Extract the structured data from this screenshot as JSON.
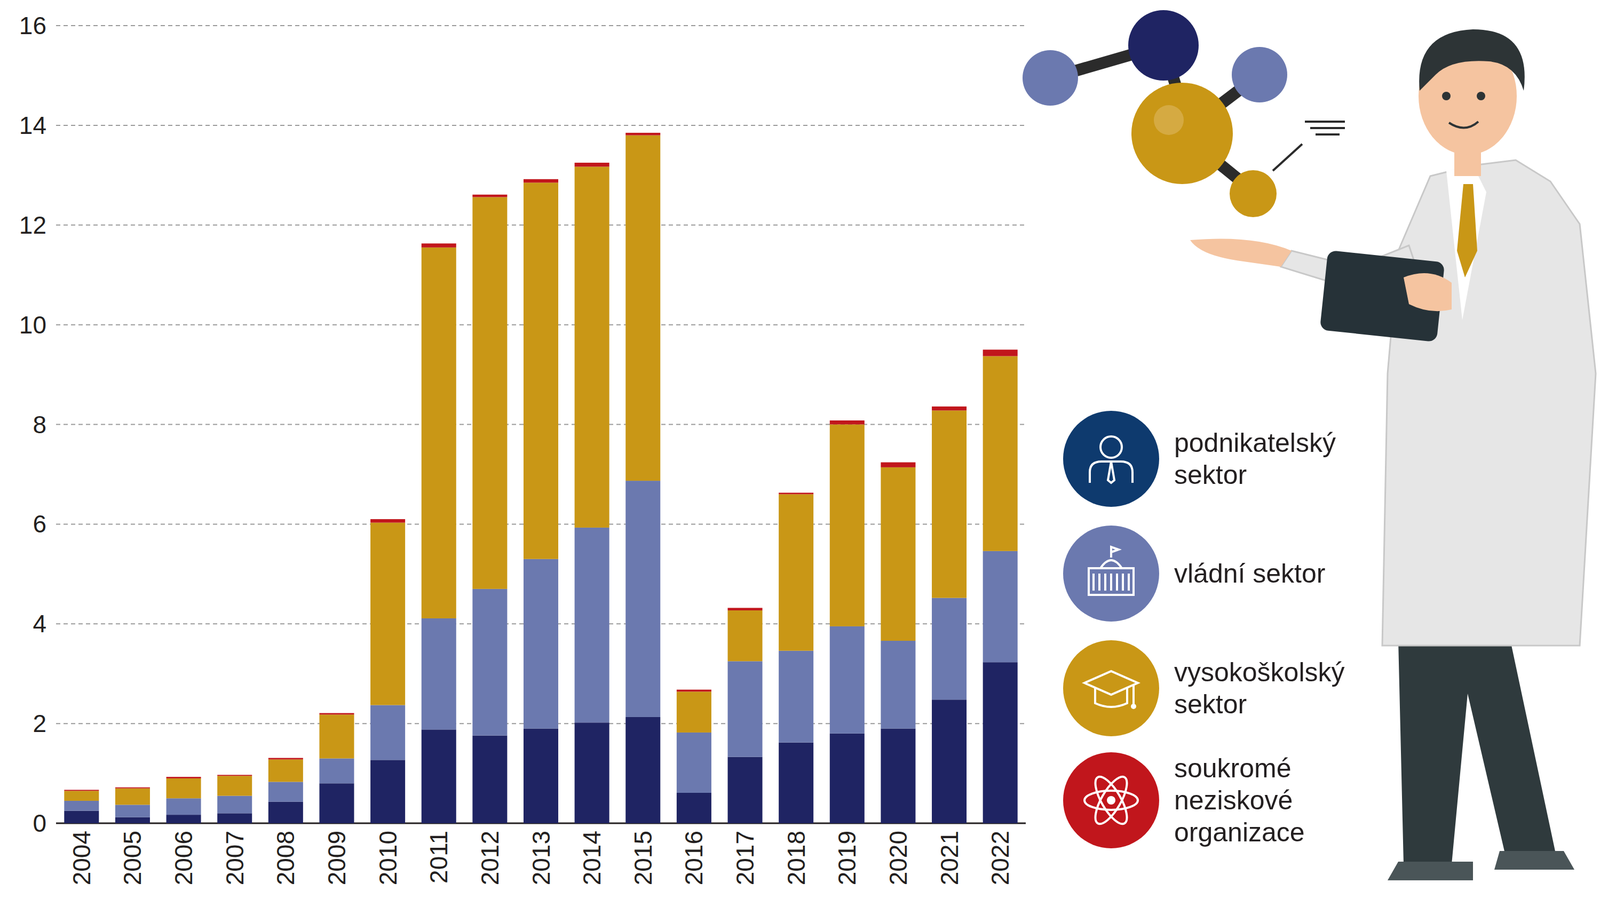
{
  "chart_data": {
    "type": "bar",
    "stacked": true,
    "grid": true,
    "legend": "right",
    "categories": [
      "2004",
      "2005",
      "2006",
      "2007",
      "2008",
      "2009",
      "2010",
      "2011",
      "2012",
      "2013",
      "2014",
      "2015",
      "2016",
      "2017",
      "2018",
      "2019",
      "2020",
      "2021",
      "2022"
    ],
    "ylim": [
      0,
      16
    ],
    "yticks": [
      0,
      2,
      4,
      6,
      8,
      10,
      12,
      14,
      16
    ],
    "series": [
      {
        "name": "podnikatelský sektor",
        "color": "#1f2463",
        "values": [
          0.25,
          0.12,
          0.17,
          0.2,
          0.43,
          0.8,
          1.27,
          1.88,
          1.76,
          1.9,
          2.02,
          2.13,
          0.61,
          1.33,
          1.62,
          1.8,
          1.9,
          2.48,
          3.23
        ]
      },
      {
        "name": "vládní sektor",
        "color": "#6b79af",
        "values": [
          0.2,
          0.25,
          0.33,
          0.35,
          0.4,
          0.5,
          1.1,
          2.23,
          2.94,
          3.4,
          3.91,
          4.74,
          1.21,
          1.92,
          1.84,
          2.15,
          1.76,
          2.04,
          2.23
        ]
      },
      {
        "name": "vysokoškolský sektor",
        "color": "#c99716",
        "values": [
          0.2,
          0.33,
          0.4,
          0.4,
          0.45,
          0.88,
          3.66,
          7.44,
          7.86,
          7.55,
          7.24,
          6.93,
          0.82,
          1.02,
          3.14,
          4.05,
          3.48,
          3.76,
          3.91
        ]
      },
      {
        "name": "soukromé neziskové organizace",
        "color": "#c1161c",
        "values": [
          0.02,
          0.02,
          0.03,
          0.02,
          0.03,
          0.03,
          0.07,
          0.08,
          0.05,
          0.07,
          0.08,
          0.05,
          0.04,
          0.05,
          0.03,
          0.08,
          0.1,
          0.08,
          0.13
        ]
      }
    ]
  }
}
